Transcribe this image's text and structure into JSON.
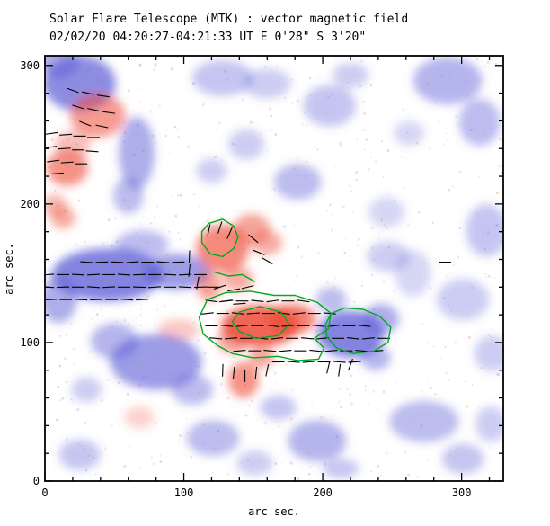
{
  "header": {
    "title": "Solar Flare Telescope (MTK) : vector magnetic field",
    "subtitle": "02/02/20  04:20:27-04:21:33 UT    E 0'28\"  S 3'20\""
  },
  "axes": {
    "xlabel": "arc sec.",
    "ylabel": "arc sec.",
    "x_ticks": [
      0,
      100,
      200,
      300
    ],
    "y_ticks": [
      0,
      100,
      200,
      300
    ],
    "minor_step": 20
  },
  "colors": {
    "positive_red": "#ee4b38",
    "negative_blue": "#5b5bd6",
    "contour_green": "#00aa22",
    "vector_black": "#000000",
    "frame_black": "#000000"
  },
  "chart_data": {
    "type": "heatmap",
    "title": "Solar Flare Telescope (MTK) : vector magnetic field",
    "subtitle": "02/02/20  04:20:27-04:21:33 UT    E 0'28\"  S 3'20\"",
    "xlabel": "arc sec.",
    "ylabel": "arc sec.",
    "x_range": [
      0,
      330
    ],
    "y_range": [
      0,
      307
    ],
    "legend": "red = positive line-of-sight polarity, blue = negative polarity, black ticks = transverse field vectors, green = contours",
    "blobs": [
      [
        25,
        287,
        26,
        20,
        "b",
        0.7
      ],
      [
        10,
        303,
        14,
        12,
        "b",
        0.5
      ],
      [
        38,
        264,
        20,
        16,
        "r",
        0.55
      ],
      [
        20,
        243,
        13,
        10,
        "r",
        0.35
      ],
      [
        16,
        226,
        15,
        13,
        "r",
        0.6
      ],
      [
        7,
        199,
        9,
        8,
        "r",
        0.4
      ],
      [
        13,
        190,
        9,
        8,
        "r",
        0.45
      ],
      [
        66,
        237,
        13,
        26,
        "b",
        0.5
      ],
      [
        60,
        206,
        11,
        13,
        "b",
        0.4
      ],
      [
        128,
        291,
        22,
        13,
        "b",
        0.35
      ],
      [
        160,
        287,
        17,
        11,
        "b",
        0.3
      ],
      [
        205,
        271,
        19,
        15,
        "b",
        0.35
      ],
      [
        220,
        293,
        13,
        9,
        "b",
        0.3
      ],
      [
        290,
        289,
        25,
        17,
        "b",
        0.45
      ],
      [
        313,
        259,
        15,
        17,
        "b",
        0.4
      ],
      [
        262,
        251,
        11,
        9,
        "b",
        0.25
      ],
      [
        318,
        181,
        15,
        19,
        "b",
        0.35
      ],
      [
        301,
        131,
        19,
        15,
        "b",
        0.3
      ],
      [
        322,
        92,
        13,
        13,
        "b",
        0.3
      ],
      [
        182,
        216,
        17,
        13,
        "b",
        0.4
      ],
      [
        120,
        224,
        11,
        9,
        "b",
        0.3
      ],
      [
        45,
        149,
        40,
        19,
        "b",
        0.75
      ],
      [
        95,
        151,
        24,
        13,
        "b",
        0.6
      ],
      [
        10,
        131,
        13,
        17,
        "b",
        0.5
      ],
      [
        70,
        171,
        19,
        10,
        "b",
        0.4
      ],
      [
        128,
        168,
        19,
        17,
        "r",
        0.65
      ],
      [
        149,
        182,
        13,
        11,
        "r",
        0.5
      ],
      [
        160,
        172,
        11,
        9,
        "r",
        0.45
      ],
      [
        118,
        141,
        9,
        11,
        "r",
        0.5
      ],
      [
        139,
        146,
        11,
        9,
        "r",
        0.45
      ],
      [
        96,
        109,
        15,
        8,
        "r",
        0.3
      ],
      [
        155,
        112,
        28,
        15,
        "r",
        0.85
      ],
      [
        178,
        117,
        17,
        11,
        "r",
        0.7
      ],
      [
        135,
        101,
        11,
        9,
        "r",
        0.5
      ],
      [
        143,
        73,
        11,
        13,
        "r",
        0.6
      ],
      [
        156,
        89,
        9,
        7,
        "r",
        0.5
      ],
      [
        220,
        106,
        24,
        17,
        "b",
        0.75
      ],
      [
        242,
        117,
        13,
        11,
        "b",
        0.5
      ],
      [
        206,
        131,
        11,
        9,
        "b",
        0.4
      ],
      [
        238,
        89,
        11,
        9,
        "b",
        0.45
      ],
      [
        80,
        86,
        33,
        20,
        "b",
        0.6
      ],
      [
        50,
        101,
        17,
        13,
        "b",
        0.45
      ],
      [
        106,
        66,
        15,
        11,
        "b",
        0.4
      ],
      [
        30,
        66,
        11,
        9,
        "b",
        0.3
      ],
      [
        25,
        19,
        15,
        11,
        "b",
        0.35
      ],
      [
        121,
        31,
        19,
        13,
        "b",
        0.4
      ],
      [
        151,
        13,
        13,
        9,
        "b",
        0.3
      ],
      [
        196,
        29,
        21,
        15,
        "b",
        0.45
      ],
      [
        213,
        9,
        13,
        7,
        "b",
        0.35
      ],
      [
        273,
        43,
        25,
        15,
        "b",
        0.4
      ],
      [
        301,
        16,
        15,
        11,
        "b",
        0.35
      ],
      [
        321,
        41,
        11,
        13,
        "b",
        0.3
      ],
      [
        68,
        46,
        11,
        8,
        "r",
        0.25
      ],
      [
        168,
        53,
        13,
        9,
        "b",
        0.35
      ],
      [
        246,
        194,
        13,
        11,
        "b",
        0.25
      ],
      [
        247,
        162,
        15,
        11,
        "b",
        0.3
      ],
      [
        145,
        243,
        13,
        11,
        "b",
        0.3
      ],
      [
        265,
        150,
        13,
        17,
        "b",
        0.25
      ]
    ],
    "vectors": {
      "default_length": 9,
      "points": [
        [
          20,
          282,
          -20
        ],
        [
          31,
          280,
          -12
        ],
        [
          42,
          278,
          -8
        ],
        [
          24,
          270,
          -18
        ],
        [
          35,
          268,
          -12
        ],
        [
          46,
          266,
          -8
        ],
        [
          29,
          258,
          -22
        ],
        [
          41,
          256,
          -12
        ],
        [
          5,
          251,
          8
        ],
        [
          15,
          250,
          4
        ],
        [
          25,
          249,
          0
        ],
        [
          35,
          248,
          0
        ],
        [
          4,
          241,
          8
        ],
        [
          14,
          240,
          4
        ],
        [
          24,
          239,
          0
        ],
        [
          34,
          238,
          -4
        ],
        [
          6,
          231,
          8
        ],
        [
          16,
          230,
          4
        ],
        [
          26,
          229,
          0
        ],
        [
          9,
          222,
          4
        ],
        [
          30,
          158,
          -4
        ],
        [
          41,
          158,
          2
        ],
        [
          52,
          158,
          -2
        ],
        [
          63,
          158,
          4
        ],
        [
          74,
          158,
          0
        ],
        [
          85,
          158,
          -4
        ],
        [
          96,
          158,
          2
        ],
        [
          2,
          149,
          4
        ],
        [
          13,
          149,
          0
        ],
        [
          24,
          149,
          -3
        ],
        [
          35,
          149,
          3
        ],
        [
          46,
          149,
          0
        ],
        [
          57,
          149,
          -4
        ],
        [
          68,
          149,
          2
        ],
        [
          79,
          149,
          0
        ],
        [
          90,
          149,
          -3
        ],
        [
          101,
          149,
          3
        ],
        [
          112,
          149,
          0
        ],
        [
          2,
          140,
          -3
        ],
        [
          13,
          140,
          2
        ],
        [
          24,
          140,
          0
        ],
        [
          35,
          140,
          -4
        ],
        [
          46,
          140,
          3
        ],
        [
          57,
          140,
          0
        ],
        [
          68,
          140,
          -2
        ],
        [
          79,
          140,
          4
        ],
        [
          90,
          140,
          0
        ],
        [
          101,
          140,
          -3
        ],
        [
          112,
          140,
          2
        ],
        [
          121,
          140,
          0
        ],
        [
          4,
          131,
          3
        ],
        [
          15,
          131,
          0
        ],
        [
          26,
          131,
          -3
        ],
        [
          37,
          131,
          2
        ],
        [
          48,
          131,
          0
        ],
        [
          59,
          131,
          -4
        ],
        [
          70,
          131,
          3
        ],
        [
          118,
          181,
          78
        ],
        [
          126,
          183,
          72
        ],
        [
          133,
          179,
          66
        ],
        [
          104,
          162,
          88
        ],
        [
          104,
          152,
          84
        ],
        [
          110,
          143,
          80
        ],
        [
          126,
          140,
          18
        ],
        [
          136,
          138,
          10
        ],
        [
          146,
          140,
          14
        ],
        [
          130,
          130,
          8
        ],
        [
          140,
          128,
          4
        ],
        [
          154,
          165,
          -22
        ],
        [
          160,
          159,
          -30
        ],
        [
          150,
          175,
          -40
        ],
        [
          120,
          130,
          -8
        ],
        [
          131,
          130,
          6
        ],
        [
          142,
          130,
          0
        ],
        [
          153,
          130,
          -6
        ],
        [
          164,
          130,
          8
        ],
        [
          175,
          130,
          0
        ],
        [
          186,
          130,
          -8
        ],
        [
          117,
          121,
          6
        ],
        [
          128,
          121,
          0
        ],
        [
          139,
          121,
          -6
        ],
        [
          150,
          121,
          4
        ],
        [
          161,
          121,
          0
        ],
        [
          172,
          121,
          -8
        ],
        [
          183,
          121,
          6
        ],
        [
          194,
          121,
          0
        ],
        [
          205,
          121,
          -5
        ],
        [
          120,
          112,
          0
        ],
        [
          131,
          112,
          -6
        ],
        [
          142,
          112,
          6
        ],
        [
          153,
          112,
          0
        ],
        [
          164,
          112,
          -8
        ],
        [
          175,
          112,
          4
        ],
        [
          186,
          112,
          0
        ],
        [
          197,
          112,
          -6
        ],
        [
          208,
          112,
          6
        ],
        [
          219,
          112,
          0
        ],
        [
          230,
          112,
          -5
        ],
        [
          123,
          103,
          -5
        ],
        [
          134,
          103,
          5
        ],
        [
          145,
          103,
          0
        ],
        [
          156,
          103,
          -6
        ],
        [
          167,
          103,
          6
        ],
        [
          178,
          103,
          0
        ],
        [
          189,
          103,
          -5
        ],
        [
          200,
          103,
          5
        ],
        [
          211,
          103,
          0
        ],
        [
          222,
          103,
          -6
        ],
        [
          233,
          103,
          5
        ],
        [
          244,
          103,
          0
        ],
        [
          140,
          94,
          5
        ],
        [
          151,
          94,
          0
        ],
        [
          162,
          94,
          -5
        ],
        [
          173,
          94,
          5
        ],
        [
          184,
          94,
          0
        ],
        [
          195,
          94,
          -6
        ],
        [
          206,
          94,
          5
        ],
        [
          217,
          94,
          0
        ],
        [
          228,
          94,
          -5
        ],
        [
          239,
          94,
          4
        ],
        [
          168,
          86,
          0
        ],
        [
          179,
          86,
          -5
        ],
        [
          190,
          86,
          5
        ],
        [
          201,
          86,
          0
        ],
        [
          212,
          86,
          -5
        ],
        [
          223,
          86,
          4
        ],
        [
          128,
          80,
          88
        ],
        [
          136,
          78,
          84
        ],
        [
          144,
          76,
          90
        ],
        [
          152,
          78,
          84
        ],
        [
          160,
          80,
          78
        ],
        [
          204,
          82,
          76
        ],
        [
          212,
          80,
          82
        ],
        [
          220,
          84,
          70
        ],
        [
          288,
          158,
          0
        ]
      ]
    },
    "contours": [
      {
        "closed": true,
        "points": [
          [
            118,
            186
          ],
          [
            128,
            189
          ],
          [
            136,
            184
          ],
          [
            139,
            176
          ],
          [
            136,
            168
          ],
          [
            128,
            162
          ],
          [
            119,
            164
          ],
          [
            113,
            172
          ],
          [
            113,
            180
          ]
        ]
      },
      {
        "closed": true,
        "points": [
          [
            117,
            131
          ],
          [
            130,
            136
          ],
          [
            148,
            137
          ],
          [
            165,
            134
          ],
          [
            180,
            134
          ],
          [
            196,
            129
          ],
          [
            206,
            121
          ],
          [
            204,
            110
          ],
          [
            194,
            103
          ],
          [
            201,
            96
          ],
          [
            197,
            88
          ],
          [
            182,
            87
          ],
          [
            168,
            90
          ],
          [
            150,
            89
          ],
          [
            135,
            92
          ],
          [
            124,
            98
          ],
          [
            114,
            106
          ],
          [
            111,
            118
          ]
        ]
      },
      {
        "closed": true,
        "points": [
          [
            140,
            122
          ],
          [
            155,
            126
          ],
          [
            170,
            122
          ],
          [
            176,
            113
          ],
          [
            168,
            105
          ],
          [
            152,
            103
          ],
          [
            140,
            108
          ],
          [
            135,
            115
          ]
        ]
      },
      {
        "closed": true,
        "points": [
          [
            206,
            121
          ],
          [
            216,
            125
          ],
          [
            229,
            124
          ],
          [
            241,
            119
          ],
          [
            249,
            111
          ],
          [
            247,
            100
          ],
          [
            237,
            94
          ],
          [
            222,
            92
          ],
          [
            210,
            96
          ],
          [
            203,
            104
          ],
          [
            202,
            113
          ]
        ]
      },
      {
        "closed": false,
        "points": [
          [
            122,
            151
          ],
          [
            132,
            148
          ],
          [
            142,
            149
          ],
          [
            151,
            144
          ]
        ]
      }
    ]
  }
}
